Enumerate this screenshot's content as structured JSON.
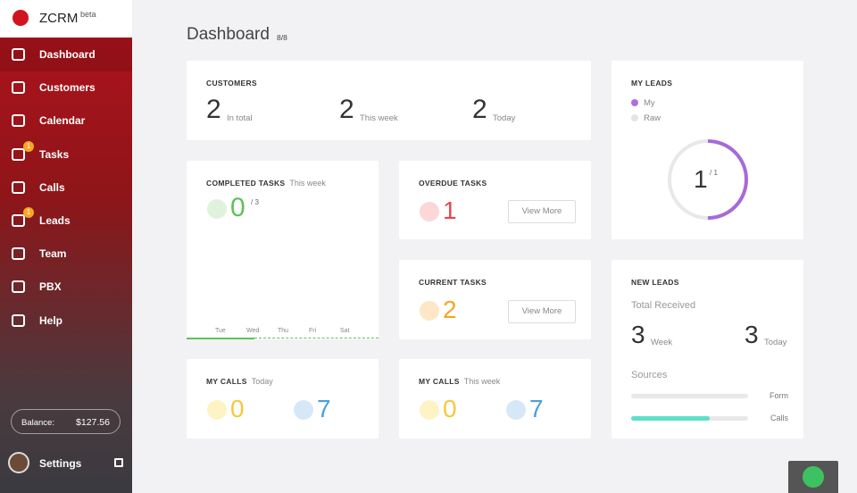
{
  "sidebar": {
    "brand": "ZCRM",
    "brand_badge": "beta",
    "nav": [
      {
        "label": "Dashboard"
      },
      {
        "label": "Customers"
      },
      {
        "label": "Calendar"
      },
      {
        "label": "Tasks",
        "badge": 1
      },
      {
        "label": "Calls"
      },
      {
        "label": "Leads",
        "badge": 1
      },
      {
        "label": "Team"
      },
      {
        "label": "PBX"
      },
      {
        "label": "Help"
      }
    ],
    "balance_label": "Balance:",
    "balance": "$127.56",
    "settings": "Settings"
  },
  "header": {
    "title": "Dashboard",
    "count": "8/8"
  },
  "customers": {
    "title": "CUSTOMERS",
    "stats": [
      {
        "value": 2,
        "label": "In total"
      },
      {
        "value": 2,
        "label": "This week"
      },
      {
        "value": 2,
        "label": "Today"
      }
    ]
  },
  "my_leads": {
    "title": "MY LEADS",
    "legend": [
      "My",
      "Raw"
    ],
    "value": 1,
    "total": "/ 1"
  },
  "completed_tasks": {
    "title": "COMPLETED TASKS",
    "period": "This week",
    "value": 0,
    "total": "/ 3",
    "days": [
      "Tue",
      "Wed",
      "Thu",
      "Fri",
      "Sat"
    ]
  },
  "overdue_tasks": {
    "title": "OVERDUE TASKS",
    "value": 1,
    "button": "View More"
  },
  "current_tasks": {
    "title": "CURRENT TASKS",
    "value": 2,
    "button": "View More"
  },
  "new_leads": {
    "title": "NEW LEADS",
    "subtitle": "Total Received",
    "stats": [
      {
        "value": 3,
        "label": "Week"
      },
      {
        "value": 3,
        "label": "Today"
      }
    ],
    "sources_title": "Sources",
    "sources": [
      {
        "label": "Form",
        "share": 0
      },
      {
        "label": "Calls",
        "share": 67
      }
    ]
  },
  "my_calls_today": {
    "title": "MY CALLS",
    "period": "Today",
    "incoming": 0,
    "outgoing": 7
  },
  "my_calls_week": {
    "title": "MY CALLS",
    "period": "This week",
    "incoming": 0,
    "outgoing": 7
  }
}
